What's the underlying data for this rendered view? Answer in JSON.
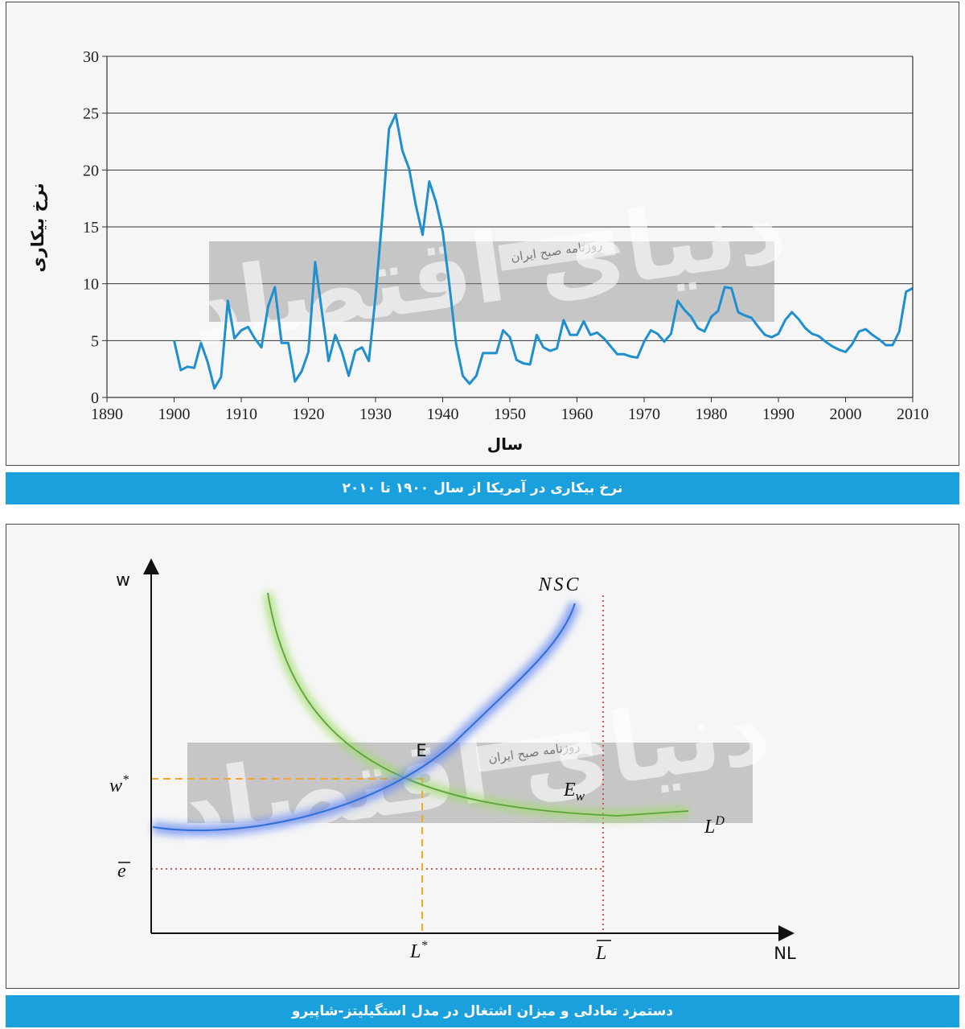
{
  "chart_data": [
    {
      "type": "line",
      "xlabel": "سال",
      "ylabel": "نرخ بیکاری",
      "xlim": [
        1890,
        2010
      ],
      "ylim": [
        0,
        30
      ],
      "xticks": [
        1890,
        1900,
        1910,
        1920,
        1930,
        1940,
        1950,
        1960,
        1970,
        1980,
        1990,
        2000,
        2010
      ],
      "yticks": [
        0,
        5,
        10,
        15,
        20,
        25,
        30
      ],
      "grid": "horizontal",
      "line_color": "#1f8fcf",
      "x": [
        1900,
        1901,
        1902,
        1903,
        1904,
        1905,
        1906,
        1907,
        1908,
        1909,
        1910,
        1911,
        1912,
        1913,
        1914,
        1915,
        1916,
        1917,
        1918,
        1919,
        1920,
        1921,
        1922,
        1923,
        1924,
        1925,
        1926,
        1927,
        1928,
        1929,
        1930,
        1931,
        1932,
        1933,
        1934,
        1935,
        1936,
        1937,
        1938,
        1939,
        1940,
        1941,
        1942,
        1943,
        1944,
        1945,
        1946,
        1947,
        1948,
        1949,
        1950,
        1951,
        1952,
        1953,
        1954,
        1955,
        1956,
        1957,
        1958,
        1959,
        1960,
        1961,
        1962,
        1963,
        1964,
        1965,
        1966,
        1967,
        1968,
        1969,
        1970,
        1971,
        1972,
        1973,
        1974,
        1975,
        1976,
        1977,
        1978,
        1979,
        1980,
        1981,
        1982,
        1983,
        1984,
        1985,
        1986,
        1987,
        1988,
        1989,
        1990,
        1991,
        1992,
        1993,
        1994,
        1995,
        1996,
        1997,
        1998,
        1999,
        2000,
        2001,
        2002,
        2003,
        2004,
        2005,
        2006,
        2007,
        2008,
        2009,
        2010
      ],
      "y": [
        5.0,
        2.4,
        2.7,
        2.6,
        4.8,
        3.1,
        0.8,
        1.8,
        8.5,
        5.2,
        5.9,
        6.2,
        5.2,
        4.4,
        8.0,
        9.7,
        4.8,
        4.8,
        1.4,
        2.3,
        4.0,
        11.9,
        7.6,
        3.2,
        5.5,
        4.0,
        1.9,
        4.1,
        4.4,
        3.2,
        8.9,
        15.9,
        23.6,
        24.9,
        21.7,
        20.1,
        16.9,
        14.3,
        19.0,
        17.2,
        14.6,
        9.9,
        4.7,
        1.9,
        1.2,
        1.9,
        3.9,
        3.9,
        3.9,
        5.9,
        5.3,
        3.3,
        3.0,
        2.9,
        5.5,
        4.4,
        4.1,
        4.3,
        6.8,
        5.5,
        5.5,
        6.7,
        5.5,
        5.7,
        5.2,
        4.5,
        3.8,
        3.8,
        3.6,
        3.5,
        4.9,
        5.9,
        5.6,
        4.9,
        5.6,
        8.5,
        7.7,
        7.1,
        6.1,
        5.8,
        7.1,
        7.6,
        9.7,
        9.6,
        7.5,
        7.2,
        7.0,
        6.2,
        5.5,
        5.3,
        5.6,
        6.8,
        7.5,
        6.9,
        6.1,
        5.6,
        5.4,
        4.9,
        4.5,
        4.2,
        4.0,
        4.7,
        5.8,
        6.0,
        5.5,
        5.1,
        4.6,
        4.6,
        5.8,
        9.3,
        9.6
      ]
    },
    {
      "type": "line",
      "xlabel": "NL",
      "ylabel": "w",
      "curve_labels": {
        "nsc": "NSC",
        "ld_base": "L",
        "ld_sup": "D"
      },
      "points": {
        "E": "E",
        "Ew_base": "E",
        "Ew_sub": "w"
      },
      "axis_labels": {
        "w_star": "w",
        "w_star_sup": "*",
        "e_bar": "e",
        "L_star": "L",
        "L_star_sup": "*",
        "L_bar": "L"
      },
      "colors": {
        "nsc": "#2f6fd6",
        "ld": "#6cb83a",
        "equilibrium": "#f5a623",
        "full_employment": "#d9432f"
      }
    }
  ],
  "watermark": {
    "brand": "دنیای اقتصاد",
    "tag": "روزنامه صبح ایران"
  },
  "captions": {
    "chart1": "نرخ بیکاری در آمریکا از سال ۱۹۰۰ تا ۲۰۱۰",
    "chart2": "دستمزد تعادلی و میزان اشتغال در مدل استگیلیتز-شاپیرو"
  }
}
